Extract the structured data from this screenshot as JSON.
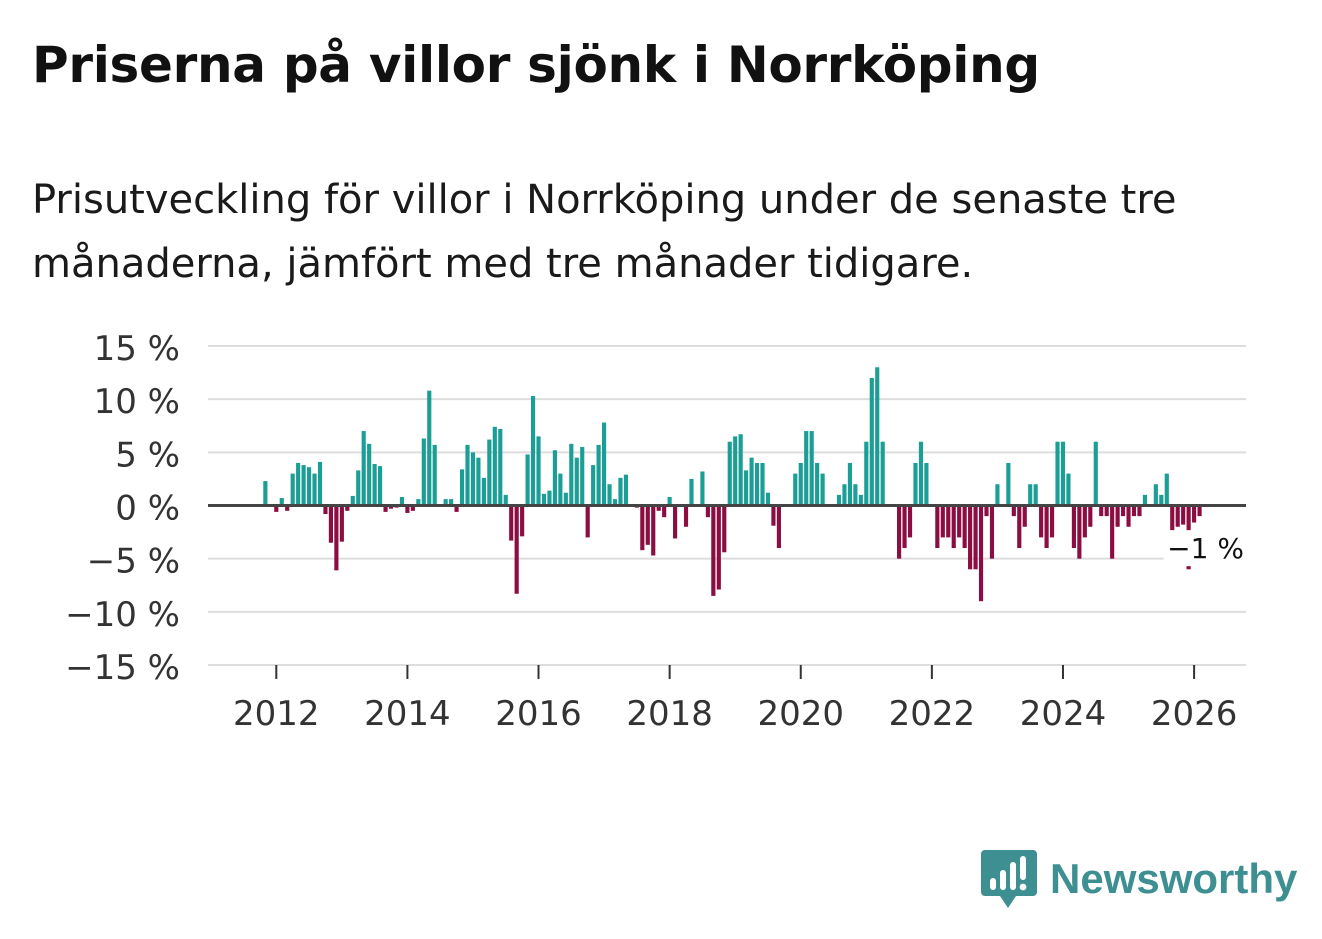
{
  "title": "Priserna på villor sjönk i Norrköping",
  "subtitle": "Prisutveckling för villor i Norrköping under de senaste tre månaderna, jämfört med tre månader tidigare.",
  "brand": {
    "name": "Newsworthy",
    "icon": "newsworthy-logo-icon",
    "color": "#3d8f91"
  },
  "colors": {
    "positive": "#1a9e96",
    "negative": "#8c0d41",
    "grid": "#dddddd",
    "zero_line": "#444444"
  },
  "chart_data": {
    "type": "bar",
    "title": "Priserna på villor sjönk i Norrköping",
    "xlabel": "",
    "ylabel": "",
    "unit": "%",
    "ylim": [
      -15,
      15
    ],
    "yticks": [
      15,
      10,
      5,
      0,
      -5,
      -10,
      -15
    ],
    "ytick_labels": [
      "15 %",
      "10 %",
      "5 %",
      "0 %",
      "−5 %",
      "−10 %",
      "−15 %"
    ],
    "xticks": [
      "2012",
      "2014",
      "2016",
      "2018",
      "2020",
      "2022",
      "2024",
      "2026"
    ],
    "x_start": "2011-01",
    "x_end": "2026-10",
    "series": [
      {
        "name": "Prisutveckling",
        "start": "2011-11",
        "values": [
          2.3,
          0,
          -0.6,
          0.7,
          -0.5,
          3.0,
          4.0,
          3.8,
          3.6,
          3.0,
          4.1,
          -0.8,
          -3.5,
          -6.1,
          -3.4,
          -0.5,
          0.9,
          3.3,
          7.0,
          5.8,
          3.9,
          3.7,
          -0.6,
          -0.3,
          -0.2,
          0.8,
          -0.7,
          -0.5,
          0.6,
          6.3,
          10.8,
          5.7,
          0.0,
          0.6,
          0.6,
          -0.6,
          3.4,
          5.7,
          5.0,
          4.5,
          2.6,
          6.2,
          7.4,
          7.2,
          1.0,
          -3.3,
          -8.3,
          -2.9,
          4.8,
          10.3,
          6.5,
          1.1,
          1.4,
          5.2,
          3.0,
          1.2,
          5.8,
          4.5,
          5.5,
          -3.0,
          3.8,
          5.7,
          7.8,
          2.0,
          0.6,
          2.6,
          2.9,
          0.0,
          -0.2,
          -4.2,
          -3.7,
          -4.7,
          -0.5,
          -1.1,
          0.8,
          -3.1,
          0.0,
          -2.0,
          2.5,
          0.0,
          3.2,
          -1.1,
          -8.5,
          -7.9,
          -4.4,
          6.0,
          6.5,
          6.7,
          3.3,
          4.5,
          4.0,
          4.0,
          1.2,
          -1.9,
          -4.0,
          0.0,
          0.0,
          3.0,
          4.0,
          7.0,
          7.0,
          4.0,
          3.0,
          0.0,
          0.0,
          1.0,
          2.0,
          4.0,
          2.0,
          1.0,
          6.0,
          12.0,
          13.0,
          6.0,
          0.0,
          0.0,
          -5.0,
          -4.0,
          -3.0,
          4.0,
          6.0,
          4.0,
          0.0,
          -4.0,
          -3.0,
          -3.0,
          -4.0,
          -3.0,
          -4.0,
          -6.0,
          -6.0,
          -9.0,
          -1.0,
          -5.0,
          2.0,
          0.0,
          4.0,
          -1.0,
          -4.0,
          -2.0,
          2.0,
          2.0,
          -3.0,
          -4.0,
          -3.0,
          6.0,
          6.0,
          3.0,
          -4.0,
          -5.0,
          -3.0,
          -2.0,
          6.0,
          -1.0,
          -1.0,
          -5.0,
          -2.0,
          -1.0,
          -2.0,
          -1.0,
          -1.0,
          1.0,
          0.0,
          2.0,
          1.0,
          3.0,
          -2.7,
          -2.0,
          -1.8,
          -6.0,
          -1.6,
          -1.0
        ]
      }
    ],
    "annotation": {
      "text": "−1 %",
      "value": -1,
      "at": "latest"
    }
  }
}
